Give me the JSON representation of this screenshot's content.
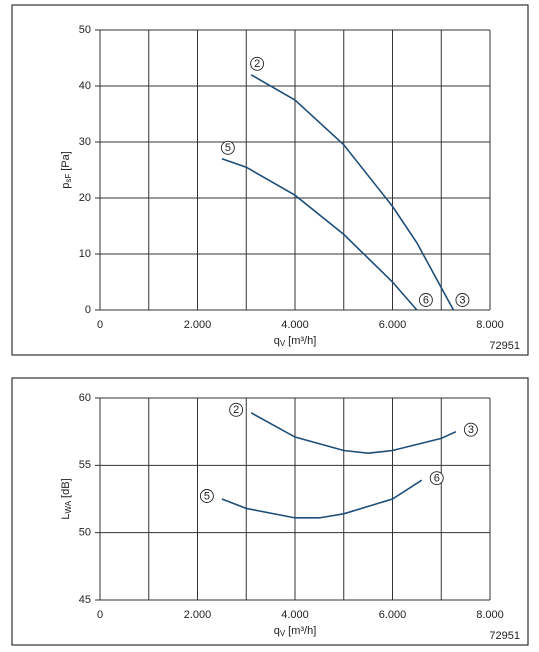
{
  "chart_data": [
    {
      "type": "line",
      "xlabel": {
        "symbol": "q",
        "subscript": "V",
        "unit": "[m³/h]"
      },
      "ylabel": {
        "symbol": "p",
        "subscript": "sF",
        "unit": "[Pa]"
      },
      "code": "72951",
      "xlim": [
        0,
        8000
      ],
      "xticks": [
        0,
        {
          "value": 2000,
          "label": "2.000"
        },
        {
          "value": 4000,
          "label": "4.000"
        },
        {
          "value": 6000,
          "label": "6.000"
        },
        {
          "value": 8000,
          "label": "8.000"
        }
      ],
      "ylim": [
        0,
        50
      ],
      "yticks": [
        0,
        10,
        20,
        30,
        40,
        50
      ],
      "grid": true,
      "series": [
        {
          "start_label": "2",
          "end_label": "3",
          "color": "#1f4e79",
          "x": [
            3100,
            4000,
            5000,
            6000,
            6500,
            7000,
            7250
          ],
          "values": [
            42,
            37.5,
            29.5,
            18.5,
            12,
            4,
            0
          ]
        },
        {
          "start_label": "5",
          "end_label": "6",
          "color": "#1f4e79",
          "x": [
            2500,
            3000,
            4000,
            5000,
            6000,
            6500
          ],
          "values": [
            27,
            25.5,
            20.5,
            13.5,
            5,
            0
          ]
        }
      ]
    },
    {
      "type": "line",
      "xlabel": {
        "symbol": "q",
        "subscript": "V",
        "unit": "[m³/h]"
      },
      "ylabel": {
        "symbol": "L",
        "subscript": "WA",
        "unit": "[dB]"
      },
      "code": "72951",
      "xlim": [
        0,
        8000
      ],
      "xticks": [
        0,
        {
          "value": 2000,
          "label": "2.000"
        },
        {
          "value": 4000,
          "label": "4.000"
        },
        {
          "value": 6000,
          "label": "6.000"
        },
        {
          "value": 8000,
          "label": "8.000"
        }
      ],
      "ylim": [
        45,
        60
      ],
      "yticks": [
        45,
        50,
        55,
        60
      ],
      "grid": true,
      "series": [
        {
          "start_label": "2",
          "end_label": "3",
          "color": "#1f4e79",
          "x": [
            3100,
            4000,
            5000,
            5500,
            6000,
            7000,
            7300
          ],
          "values": [
            58.9,
            57.1,
            56.1,
            55.9,
            56.1,
            57,
            57.5
          ]
        },
        {
          "start_label": "5",
          "end_label": "6",
          "color": "#1f4e79",
          "x": [
            2500,
            3000,
            4000,
            4500,
            5000,
            6000,
            6600
          ],
          "values": [
            52.5,
            51.8,
            51.1,
            51.1,
            51.4,
            52.5,
            53.9
          ]
        }
      ]
    }
  ]
}
